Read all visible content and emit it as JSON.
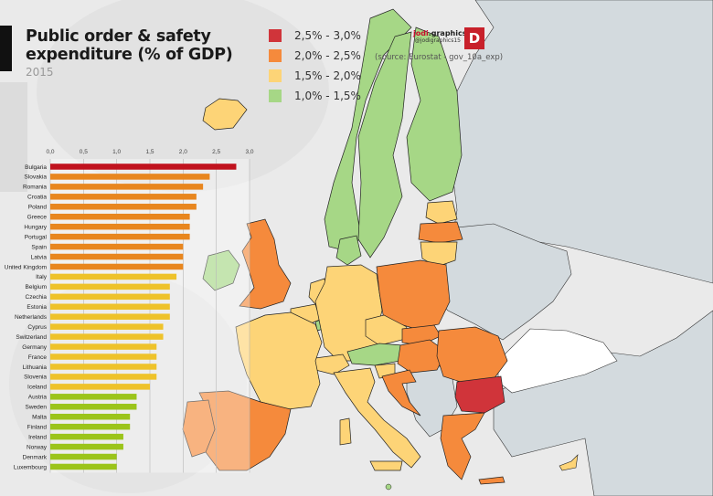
{
  "header": {
    "title_line1": "Public order & safety",
    "title_line2": "expenditure (% of GDP)",
    "year": "2015"
  },
  "legend": [
    {
      "label": "2,5% - 3,0%",
      "color": "#d0343a"
    },
    {
      "label": "2,0% - 2,5%",
      "color": "#f58a3c"
    },
    {
      "label": "1,5% - 2,0%",
      "color": "#fdd477"
    },
    {
      "label": "1,0% - 1,5%",
      "color": "#a6d786"
    }
  ],
  "branding": {
    "name_bold": "jodi",
    "name_rest": ".graphics",
    "handle": "@jodigraphics15",
    "logo_letter": "D",
    "source": "(source: Eurostat - gov_10a_exp)"
  },
  "colors": {
    "non_eu_land": "#d3dade",
    "sea": "#ececec",
    "black_sea": "#ffffff",
    "bar_high": "#c0121e",
    "bar_orange": "#e8861e",
    "bar_yellow": "#eec22a",
    "bar_green": "#9bc41a"
  },
  "chart_data": {
    "type": "bar",
    "orientation": "horizontal",
    "title": "Public order & safety expenditure (% of GDP)",
    "subtitle": "2015",
    "xlabel": "",
    "ylabel": "",
    "xlim": [
      0,
      3.0
    ],
    "xticks": [
      "0,0",
      "0,5",
      "1,0",
      "1,5",
      "2,0",
      "2,5",
      "3,0"
    ],
    "xtick_values": [
      0,
      0.5,
      1.0,
      1.5,
      2.0,
      2.5,
      3.0
    ],
    "grid": true,
    "categories": [
      "Bulgaria",
      "Slovakia",
      "Romania",
      "Croatia",
      "Poland",
      "Greece",
      "Hungary",
      "Portugal",
      "Spain",
      "Latvia",
      "United Kingdom",
      "Italy",
      "Belgium",
      "Czechia",
      "Estonia",
      "Netherlands",
      "Cyprus",
      "Switzerland",
      "Germany",
      "France",
      "Lithuania",
      "Slovenia",
      "Iceland",
      "Austria",
      "Sweden",
      "Malta",
      "Finland",
      "Ireland",
      "Norway",
      "Denmark",
      "Luxembourg"
    ],
    "values": [
      2.8,
      2.4,
      2.3,
      2.2,
      2.2,
      2.1,
      2.1,
      2.1,
      2.0,
      2.0,
      2.0,
      1.9,
      1.8,
      1.8,
      1.8,
      1.8,
      1.7,
      1.7,
      1.6,
      1.6,
      1.6,
      1.6,
      1.5,
      1.3,
      1.3,
      1.2,
      1.2,
      1.1,
      1.1,
      1.0,
      1.0
    ]
  },
  "map_data": {
    "type": "choropleth",
    "classes": {
      "2,5% - 3,0%": [
        "Bulgaria"
      ],
      "2,0% - 2,5%": [
        "Slovakia",
        "Romania",
        "Croatia",
        "Poland",
        "Greece",
        "Hungary",
        "Portugal",
        "Spain",
        "Latvia",
        "United Kingdom"
      ],
      "1,5% - 2,0%": [
        "Italy",
        "Belgium",
        "Czechia",
        "Estonia",
        "Netherlands",
        "Cyprus",
        "Switzerland",
        "Germany",
        "France",
        "Lithuania",
        "Slovenia",
        "Iceland"
      ],
      "1,0% - 1,5%": [
        "Austria",
        "Sweden",
        "Malta",
        "Finland",
        "Ireland",
        "Norway",
        "Denmark",
        "Luxembourg"
      ]
    }
  }
}
